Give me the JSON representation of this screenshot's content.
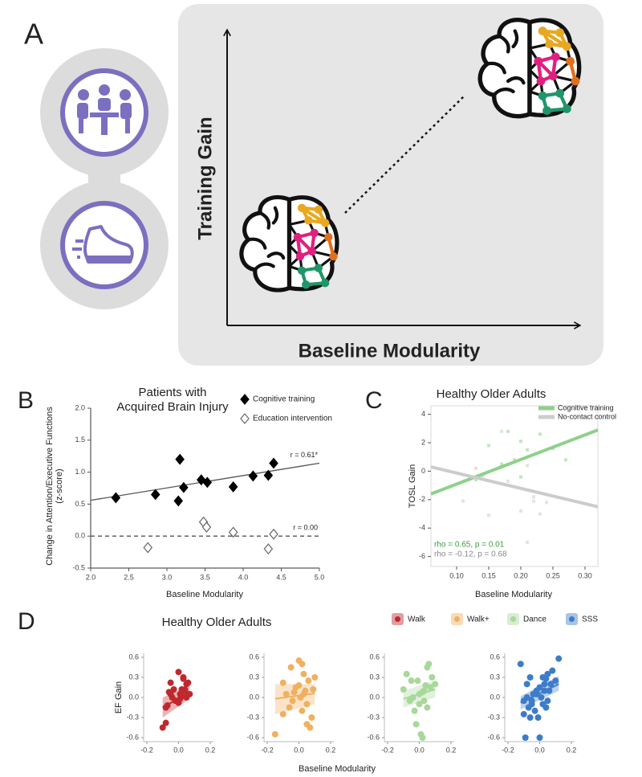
{
  "chart_data": [
    {
      "type": "diagram",
      "panel": "A",
      "ylabel": "Training Gain",
      "xlabel": "Baseline Modularity"
    },
    {
      "type": "scatter",
      "panel": "B",
      "title": [
        "Patients with",
        "Acquired Brain Injury"
      ],
      "xlabel": "Baseline Modularity",
      "ylabel": [
        "Change in Attention/Executive Functions",
        "(z-score)"
      ],
      "frame": "axes",
      "legend": "upper right",
      "xlim": [
        2.0,
        5.0
      ],
      "ylim": [
        -0.5,
        2.0
      ],
      "xticks": [
        {
          "value": 2,
          "label": "2.0"
        },
        2.5,
        {
          "value": 3,
          "label": "3.0"
        },
        3.5,
        {
          "value": 4,
          "label": "4.0"
        },
        4.5,
        {
          "value": 5,
          "label": "5.0"
        }
      ],
      "yticks": [
        -0.5,
        {
          "value": 0,
          "label": "0.0"
        },
        0.5,
        {
          "value": 1,
          "label": "1.0"
        },
        1.5,
        {
          "value": 2,
          "label": "2.0"
        }
      ],
      "series": [
        {
          "name": "Cognitive training",
          "color": "#000000",
          "marker": "diamond",
          "filled": true,
          "x": [
            2.33,
            2.85,
            3.15,
            3.17,
            3.22,
            3.45,
            3.53,
            3.87,
            4.13,
            4.33,
            4.4
          ],
          "values": [
            0.6,
            0.65,
            0.55,
            1.2,
            0.76,
            0.88,
            0.84,
            0.77,
            0.94,
            0.95,
            1.14
          ],
          "fit": {
            "x": [
              2.0,
              5.0
            ],
            "y": [
              0.56,
              1.14
            ],
            "color": "#555555",
            "dashed": false
          },
          "annotation": "r = 0.61*"
        },
        {
          "name": "Education intervention",
          "color": "#666666",
          "marker": "diamond",
          "filled": false,
          "x": [
            2.75,
            3.48,
            3.52,
            3.87,
            4.33,
            4.4
          ],
          "values": [
            -0.18,
            0.22,
            0.14,
            0.06,
            -0.2,
            0.03
          ],
          "fit": {
            "x": [
              2.0,
              5.0
            ],
            "y": [
              0.0,
              0.0
            ],
            "color": "#555555",
            "dashed": true
          },
          "annotation": "r = 0.00"
        }
      ]
    },
    {
      "type": "scatter",
      "panel": "C",
      "title": "Healthy Older Adults",
      "xlabel": "Baseline Modularity",
      "ylabel": "TOSL Gain",
      "frame": "box",
      "legend": "upper right",
      "xlim": [
        0.06,
        0.32
      ],
      "ylim": [
        -6.7,
        4.6
      ],
      "xticks": [
        {
          "value": 0.1,
          "label": "0.10"
        },
        0.15,
        {
          "value": 0.2,
          "label": "0.20"
        },
        0.25,
        {
          "value": 0.3,
          "label": "0.30"
        }
      ],
      "yticks": [
        -6,
        -4,
        -2,
        0,
        2,
        4
      ],
      "series": [
        {
          "name": "Cognitive training",
          "color": "#8fd18a",
          "marker": "square",
          "filled": true,
          "x": [
            0.14,
            0.15,
            0.17,
            0.18,
            0.19,
            0.2,
            0.21,
            0.23,
            0.25,
            0.27,
            0.13,
            0.2
          ],
          "values": [
            -0.3,
            1.8,
            0.5,
            2.8,
            0.8,
            2.1,
            1.5,
            2.6,
            1.6,
            0.8,
            -0.6,
            -0.4
          ],
          "fit": {
            "x": [
              0.06,
              0.32
            ],
            "y": [
              -1.6,
              2.9
            ],
            "color": "#8fd18a",
            "dashed": false
          },
          "annotation": "rho = 0.65, p = 0.01",
          "annotation_color": "#3c9e3c"
        },
        {
          "name": "No-contact control",
          "color": "#cccccc",
          "marker": "square",
          "filled": true,
          "x": [
            0.11,
            0.17,
            0.18,
            0.15,
            0.2,
            0.22,
            0.21,
            0.22,
            0.23,
            0.24,
            0.13,
            0.21
          ],
          "values": [
            -2.1,
            2.8,
            -0.7,
            -3.1,
            -2.8,
            -2.1,
            -5.0,
            -1.8,
            -3.0,
            -2.2,
            0.2,
            0.4
          ],
          "fit": {
            "x": [
              0.06,
              0.32
            ],
            "y": [
              0.3,
              -2.5
            ],
            "color": "#cccccc",
            "dashed": false
          },
          "annotation": "rho = -0.12, p = 0.68",
          "annotation_color": "#8a8a8a"
        }
      ]
    },
    {
      "type": "scatter-grid",
      "panel": "D",
      "title": "Healthy Older Adults",
      "xlabel": "Baseline Modularity",
      "ylabel": "EF Gain",
      "legend": "top",
      "xlim": [
        -0.22,
        0.22
      ],
      "ylim": [
        -0.66,
        0.66
      ],
      "xticks": [
        -0.2,
        {
          "value": 0,
          "label": "0.0"
        },
        0.2
      ],
      "yticks": [
        -0.6,
        -0.3,
        {
          "value": 0,
          "label": "0.0"
        },
        0.3,
        0.6
      ],
      "series": [
        {
          "name": "Walk",
          "color": "#c0282d",
          "x": [
            -0.1,
            -0.08,
            -0.05,
            -0.05,
            -0.03,
            -0.02,
            0,
            0.01,
            0.02,
            0.03,
            0.04,
            0.05,
            0.06,
            0.07,
            -0.07,
            -0.04,
            0.0,
            0.02,
            0.03,
            -0.06,
            -0.08,
            0.01,
            0.05,
            0.04
          ],
          "values": [
            -0.45,
            -0.38,
            0.22,
            0.05,
            0.12,
            -0.05,
            0.38,
            0.05,
            0.02,
            0.28,
            0.1,
            0.2,
            0.22,
            0.05,
            -0.12,
            0.0,
            -0.08,
            0.12,
            0.3,
            0.08,
            -0.15,
            -0.02,
            0.0,
            0.12
          ],
          "fit": {
            "x": [
              -0.1,
              0.07
            ],
            "y": [
              -0.15,
              0.08
            ],
            "lower": [
              -0.3,
              -0.02
            ],
            "upper": [
              0.0,
              0.18
            ]
          }
        },
        {
          "name": "Walk+",
          "color": "#f0b060",
          "x": [
            -0.15,
            -0.1,
            -0.08,
            -0.05,
            -0.04,
            -0.02,
            0,
            0.01,
            0.02,
            0.03,
            0.04,
            0.05,
            0.06,
            0.08,
            0.1,
            -0.06,
            -0.03,
            0.0,
            0.02,
            0.05,
            0.07,
            -0.1,
            0.09,
            0.03
          ],
          "values": [
            -0.55,
            0.22,
            0.05,
            0.45,
            -0.05,
            0.15,
            0.55,
            0.0,
            -0.2,
            0.35,
            0.1,
            -0.4,
            0.25,
            -0.3,
            0.3,
            -0.15,
            0.08,
            0.18,
            0.5,
            -0.1,
            -0.45,
            -0.25,
            0.12,
            0.05
          ],
          "fit": {
            "x": [
              -0.15,
              0.1
            ],
            "y": [
              -0.02,
              0.06
            ],
            "lower": [
              -0.25,
              -0.1
            ],
            "upper": [
              0.2,
              0.2
            ]
          }
        },
        {
          "name": "Dance",
          "color": "#a8d89a",
          "x": [
            -0.1,
            -0.08,
            -0.06,
            -0.05,
            -0.03,
            -0.02,
            0,
            0.01,
            0.02,
            0.03,
            0.04,
            0.05,
            0.06,
            0.08,
            0.1,
            -0.04,
            0,
            0.02,
            0.05,
            0.07,
            -0.01,
            0.03
          ],
          "values": [
            0.12,
            0.35,
            -0.05,
            0.25,
            -0.2,
            -0.4,
            0.05,
            -0.55,
            -0.6,
            0.1,
            0.18,
            0.45,
            0.5,
            0.3,
            0.2,
            0.0,
            -0.1,
            0.08,
            -0.15,
            0.15,
            0.25,
            -0.05
          ],
          "fit": {
            "x": [
              -0.1,
              0.1
            ],
            "y": [
              -0.02,
              0.12
            ],
            "lower": [
              -0.15,
              0.0
            ],
            "upper": [
              0.1,
              0.25
            ]
          }
        },
        {
          "name": "SSS",
          "color": "#3d7cc8",
          "x": [
            -0.12,
            -0.1,
            -0.1,
            -0.08,
            -0.07,
            -0.06,
            -0.05,
            -0.04,
            -0.03,
            -0.02,
            -0.01,
            0,
            0.01,
            0.02,
            0.03,
            0.04,
            0.05,
            0.06,
            0.07,
            0.08,
            0.1,
            0.12,
            -0.09,
            -0.05,
            0,
            0.03,
            0.05,
            -0.06,
            -0.02,
            0.02,
            -0.08,
            0.04
          ],
          "values": [
            0.5,
            -0.05,
            -0.25,
            0.0,
            -0.15,
            0.3,
            -0.1,
            0.05,
            -0.2,
            0.1,
            -0.3,
            0.15,
            0.0,
            -0.1,
            0.2,
            0.28,
            0.35,
            0.1,
            0.2,
            0.4,
            0.25,
            0.58,
            -0.6,
            -0.05,
            -0.6,
            0.1,
            -0.05,
            -0.3,
            0.05,
            0.3,
            0.2,
            -0.15
          ],
          "fit": {
            "x": [
              -0.12,
              0.12
            ],
            "y": [
              -0.08,
              0.2
            ],
            "lower": [
              -0.18,
              0.1
            ],
            "upper": [
              0.02,
              0.32
            ]
          }
        }
      ]
    }
  ]
}
